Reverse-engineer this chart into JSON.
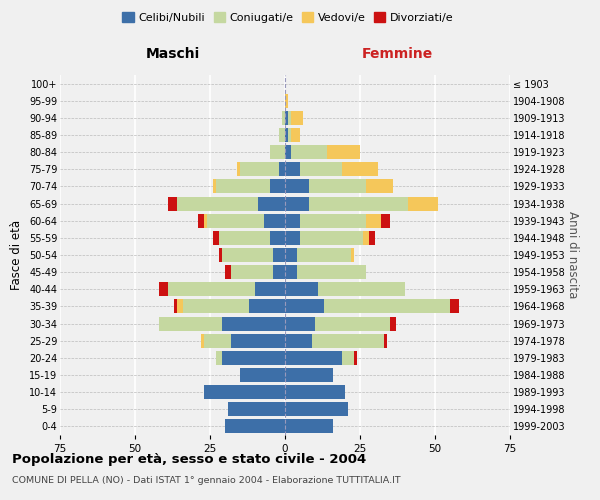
{
  "age_groups": [
    "0-4",
    "5-9",
    "10-14",
    "15-19",
    "20-24",
    "25-29",
    "30-34",
    "35-39",
    "40-44",
    "45-49",
    "50-54",
    "55-59",
    "60-64",
    "65-69",
    "70-74",
    "75-79",
    "80-84",
    "85-89",
    "90-94",
    "95-99",
    "100+"
  ],
  "birth_years": [
    "1999-2003",
    "1994-1998",
    "1989-1993",
    "1984-1988",
    "1979-1983",
    "1974-1978",
    "1969-1973",
    "1964-1968",
    "1959-1963",
    "1954-1958",
    "1949-1953",
    "1944-1948",
    "1939-1943",
    "1934-1938",
    "1929-1933",
    "1924-1928",
    "1919-1923",
    "1914-1918",
    "1909-1913",
    "1904-1908",
    "≤ 1903"
  ],
  "colors": {
    "celibe": "#3d6fa8",
    "coniugato": "#c5d8a0",
    "vedovo": "#f5c75a",
    "divorziato": "#cc1111"
  },
  "maschi": {
    "celibe": [
      20,
      19,
      27,
      15,
      21,
      18,
      21,
      12,
      10,
      4,
      4,
      5,
      7,
      9,
      5,
      2,
      0,
      0,
      0,
      0,
      0
    ],
    "coniugato": [
      0,
      0,
      0,
      0,
      2,
      9,
      21,
      22,
      29,
      14,
      17,
      17,
      19,
      27,
      18,
      13,
      5,
      2,
      1,
      0,
      0
    ],
    "vedovo": [
      0,
      0,
      0,
      0,
      0,
      1,
      0,
      2,
      0,
      0,
      0,
      0,
      1,
      0,
      1,
      1,
      0,
      0,
      0,
      0,
      0
    ],
    "divorziato": [
      0,
      0,
      0,
      0,
      0,
      0,
      0,
      1,
      3,
      2,
      1,
      2,
      2,
      3,
      0,
      0,
      0,
      0,
      0,
      0,
      0
    ]
  },
  "femmine": {
    "celibe": [
      16,
      21,
      20,
      16,
      19,
      9,
      10,
      13,
      11,
      4,
      4,
      5,
      5,
      8,
      8,
      5,
      2,
      1,
      1,
      0,
      0
    ],
    "coniugato": [
      0,
      0,
      0,
      0,
      4,
      24,
      25,
      42,
      29,
      23,
      18,
      21,
      22,
      33,
      19,
      14,
      12,
      1,
      1,
      0,
      0
    ],
    "vedovo": [
      0,
      0,
      0,
      0,
      0,
      0,
      0,
      0,
      0,
      0,
      1,
      2,
      5,
      10,
      9,
      12,
      11,
      3,
      4,
      1,
      0
    ],
    "divorziato": [
      0,
      0,
      0,
      0,
      1,
      1,
      2,
      3,
      0,
      0,
      0,
      2,
      3,
      0,
      0,
      0,
      0,
      0,
      0,
      0,
      0
    ]
  },
  "title": "Popolazione per età, sesso e stato civile - 2004",
  "subtitle": "COMUNE DI PELLA (NO) - Dati ISTAT 1° gennaio 2004 - Elaborazione TUTTITALIA.IT",
  "xlabel_maschi": "Maschi",
  "xlabel_femmine": "Femmine",
  "ylabel": "Fasce di età",
  "ylabel_right": "Anni di nascita",
  "xlim": 75,
  "legend_labels": [
    "Celibi/Nubili",
    "Coniugati/e",
    "Vedovi/e",
    "Divorziati/e"
  ],
  "background_color": "#f0f0f0"
}
